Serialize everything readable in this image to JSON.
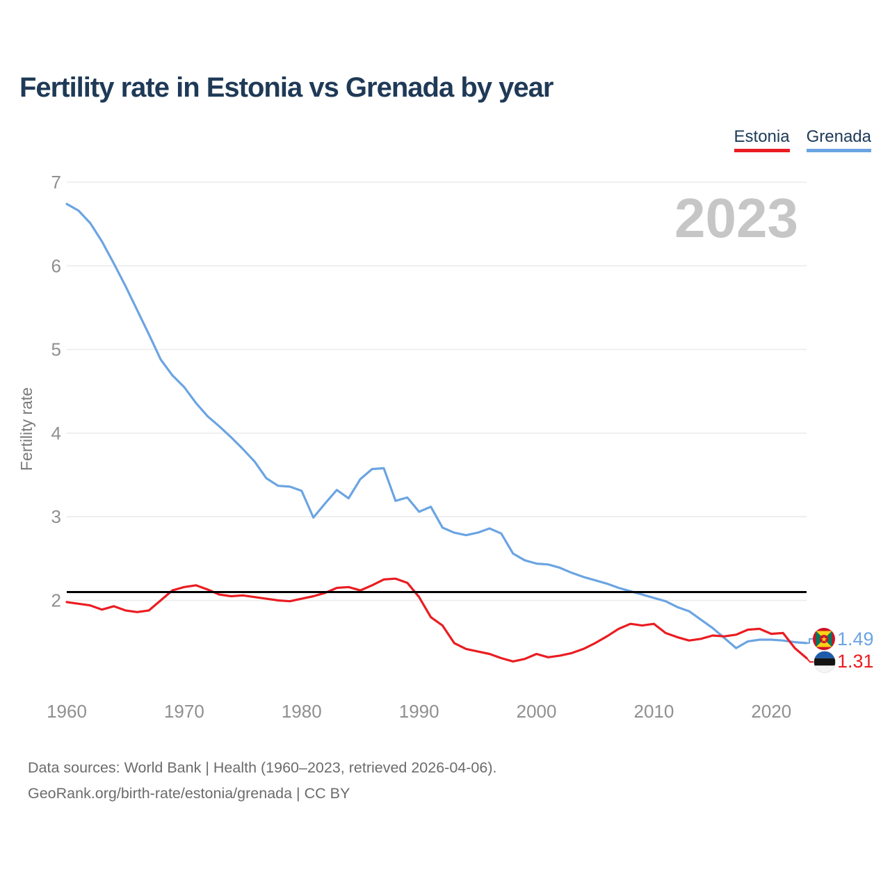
{
  "header": {
    "title": "Fertility rate in Estonia vs Grenada by year"
  },
  "legend": {
    "items": [
      {
        "label": "Estonia",
        "color": "#ea1c21"
      },
      {
        "label": "Grenada",
        "color": "#6ba4e2"
      }
    ]
  },
  "watermark": "2023",
  "footer": {
    "line1": "Data sources: World Bank | Health (1960–2023, retrieved 2026-04-06).",
    "line2": "GeoRank.org/birth-rate/estonia/grenada | CC BY"
  },
  "end_labels": [
    {
      "series": "Grenada",
      "value": "1.49",
      "color": "#6ba4e2",
      "flag_icon": "grenada-flag"
    },
    {
      "series": "Estonia",
      "value": "1.31",
      "color": "#ea1c21",
      "flag_icon": "estonia-flag"
    }
  ],
  "chart_data": {
    "type": "line",
    "title": "Fertility rate in Estonia vs Grenada by year",
    "xlabel": "",
    "ylabel": "Fertility rate",
    "xlim": [
      1960,
      2023
    ],
    "ylim": [
      1.1,
      7
    ],
    "grid": "horizontal-only",
    "legend_position": "top-right",
    "x_ticks": [
      1960,
      1970,
      1980,
      1990,
      2000,
      2010,
      2020
    ],
    "y_ticks": [
      2,
      3,
      4,
      5,
      6,
      7
    ],
    "reference_line": {
      "value": 2.1,
      "color": "#000000"
    },
    "x": [
      1960,
      1961,
      1962,
      1963,
      1964,
      1965,
      1966,
      1967,
      1968,
      1969,
      1970,
      1971,
      1972,
      1973,
      1974,
      1975,
      1976,
      1977,
      1978,
      1979,
      1980,
      1981,
      1982,
      1983,
      1984,
      1985,
      1986,
      1987,
      1988,
      1989,
      1990,
      1991,
      1992,
      1993,
      1994,
      1995,
      1996,
      1997,
      1998,
      1999,
      2000,
      2001,
      2002,
      2003,
      2004,
      2005,
      2006,
      2007,
      2008,
      2009,
      2010,
      2011,
      2012,
      2013,
      2014,
      2015,
      2016,
      2017,
      2018,
      2019,
      2020,
      2021,
      2022,
      2023
    ],
    "series": [
      {
        "name": "Grenada",
        "color": "#6ba4e2",
        "values": [
          6.74,
          6.66,
          6.51,
          6.29,
          6.03,
          5.76,
          5.47,
          5.18,
          4.88,
          4.69,
          4.55,
          4.36,
          4.2,
          4.08,
          3.95,
          3.81,
          3.66,
          3.46,
          3.37,
          3.36,
          3.31,
          2.99,
          3.16,
          3.32,
          3.22,
          3.45,
          3.57,
          3.58,
          3.19,
          3.23,
          3.06,
          3.12,
          2.87,
          2.81,
          2.78,
          2.81,
          2.86,
          2.8,
          2.56,
          2.48,
          2.44,
          2.43,
          2.39,
          2.33,
          2.28,
          2.24,
          2.2,
          2.15,
          2.11,
          2.07,
          2.03,
          1.99,
          1.92,
          1.87,
          1.77,
          1.67,
          1.55,
          1.43,
          1.51,
          1.53,
          1.53,
          1.52,
          1.5,
          1.49
        ]
      },
      {
        "name": "Estonia",
        "color": "#ea1c21",
        "values": [
          1.98,
          1.96,
          1.94,
          1.89,
          1.93,
          1.88,
          1.86,
          1.88,
          2.0,
          2.12,
          2.16,
          2.18,
          2.13,
          2.07,
          2.05,
          2.06,
          2.04,
          2.02,
          2.0,
          1.99,
          2.02,
          2.05,
          2.09,
          2.15,
          2.16,
          2.12,
          2.18,
          2.25,
          2.26,
          2.21,
          2.04,
          1.8,
          1.7,
          1.49,
          1.42,
          1.39,
          1.36,
          1.31,
          1.27,
          1.3,
          1.36,
          1.32,
          1.34,
          1.37,
          1.42,
          1.49,
          1.57,
          1.66,
          1.72,
          1.7,
          1.72,
          1.61,
          1.56,
          1.52,
          1.54,
          1.58,
          1.57,
          1.59,
          1.65,
          1.66,
          1.6,
          1.61,
          1.43,
          1.31
        ]
      }
    ]
  }
}
